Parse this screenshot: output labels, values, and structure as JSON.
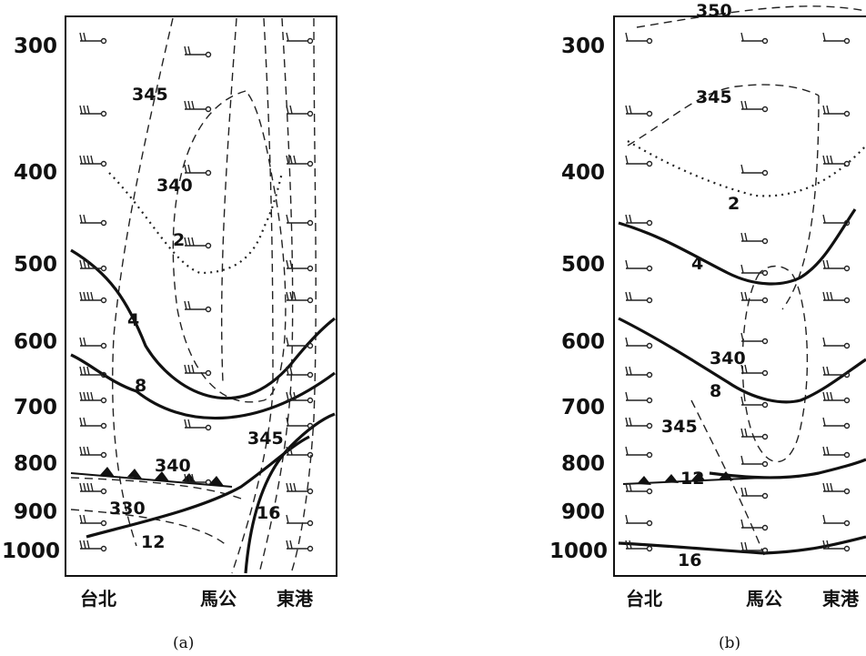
{
  "pressure_levels": [
    "300",
    "400",
    "500",
    "600",
    "700",
    "800",
    "900",
    "1000"
  ],
  "stations": [
    "台北",
    "馬公",
    "東港"
  ],
  "panels": [
    {
      "caption": "(a)",
      "theta_labels": [
        "345",
        "340",
        "340",
        "345",
        "330"
      ],
      "mixing_labels": [
        "2",
        "4",
        "8",
        "12",
        "16"
      ]
    },
    {
      "caption": "(b)",
      "theta_labels": [
        "350",
        "345",
        "340",
        "345"
      ],
      "mixing_labels": [
        "2",
        "4",
        "8",
        "12",
        "16"
      ]
    }
  ],
  "colors": {
    "ink": "#111111",
    "background": "#ffffff"
  }
}
